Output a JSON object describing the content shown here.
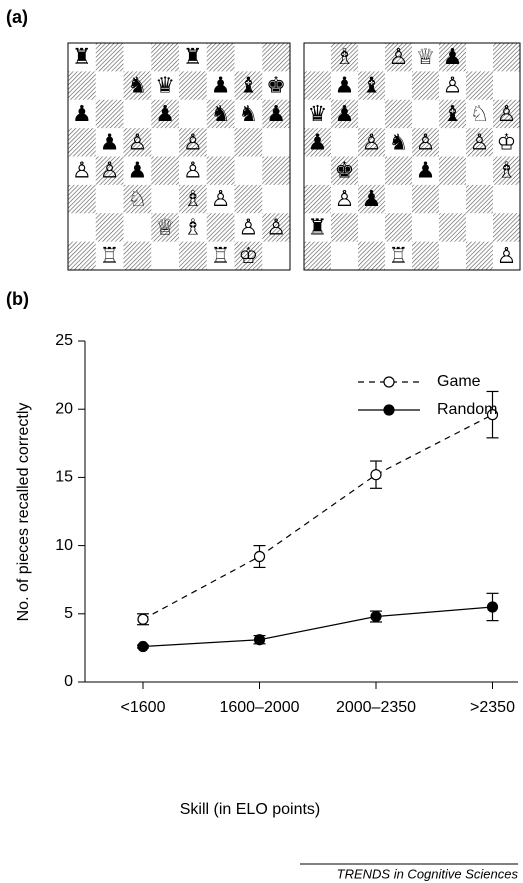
{
  "panels": {
    "a": "(a)",
    "b": "(b)"
  },
  "boards": [
    {
      "rows": [
        [
          "♜",
          null,
          null,
          null,
          "♜",
          null,
          null,
          null
        ],
        [
          null,
          null,
          "♞",
          "♛",
          null,
          "♟",
          "♝",
          "♚"
        ],
        [
          "♟",
          null,
          null,
          "♟",
          null,
          "♞",
          "♞",
          "♟"
        ],
        [
          null,
          "♟",
          "♙",
          null,
          "♙",
          null,
          null,
          null
        ],
        [
          "♙",
          "♙",
          "♟",
          null,
          "♙",
          null,
          null,
          null
        ],
        [
          null,
          null,
          "♘",
          null,
          "♗",
          "♙",
          null,
          null
        ],
        [
          null,
          null,
          null,
          "♕",
          "♗",
          null,
          "♙",
          "♙"
        ],
        [
          null,
          "♖",
          null,
          null,
          null,
          "♖",
          "♔",
          null
        ]
      ]
    },
    {
      "rows": [
        [
          null,
          "♗",
          null,
          "♙",
          "♕",
          "♟",
          null,
          null
        ],
        [
          null,
          "♟",
          "♝",
          null,
          null,
          "♙",
          null,
          null
        ],
        [
          "♛",
          "♟",
          null,
          null,
          null,
          "♝",
          "♘",
          "♙"
        ],
        [
          "♟",
          null,
          "♙",
          "♞",
          "♙",
          null,
          "♙",
          "♔"
        ],
        [
          null,
          "♚",
          null,
          null,
          "♟",
          null,
          null,
          "♗"
        ],
        [
          null,
          "♙",
          "♟",
          null,
          null,
          null,
          null,
          null
        ],
        [
          "♜",
          null,
          null,
          null,
          null,
          null,
          null,
          null
        ],
        [
          null,
          null,
          null,
          "♖",
          null,
          null,
          null,
          "♙"
        ]
      ]
    }
  ],
  "chart_data": {
    "type": "line",
    "ylabel": "No. of pieces recalled correctly",
    "xlabel": "Skill (in ELO points)",
    "categories": [
      "<1600",
      "1600–2000",
      "2000–2350",
      ">2350"
    ],
    "series": [
      {
        "name": "Game",
        "color": "#000000",
        "dashed": true,
        "marker": "open",
        "values": [
          4.6,
          9.2,
          15.2,
          19.6
        ],
        "errors": [
          0.4,
          0.8,
          1.0,
          1.7
        ]
      },
      {
        "name": "Random",
        "color": "#000000",
        "dashed": false,
        "marker": "filled",
        "values": [
          2.6,
          3.1,
          4.8,
          5.5
        ],
        "errors": [
          0.1,
          0.3,
          0.4,
          1.0
        ]
      }
    ],
    "ylim": [
      0,
      25
    ],
    "yticks": [
      0,
      5,
      10,
      15,
      20,
      25
    ]
  },
  "footer": "TRENDS in Cognitive Sciences"
}
